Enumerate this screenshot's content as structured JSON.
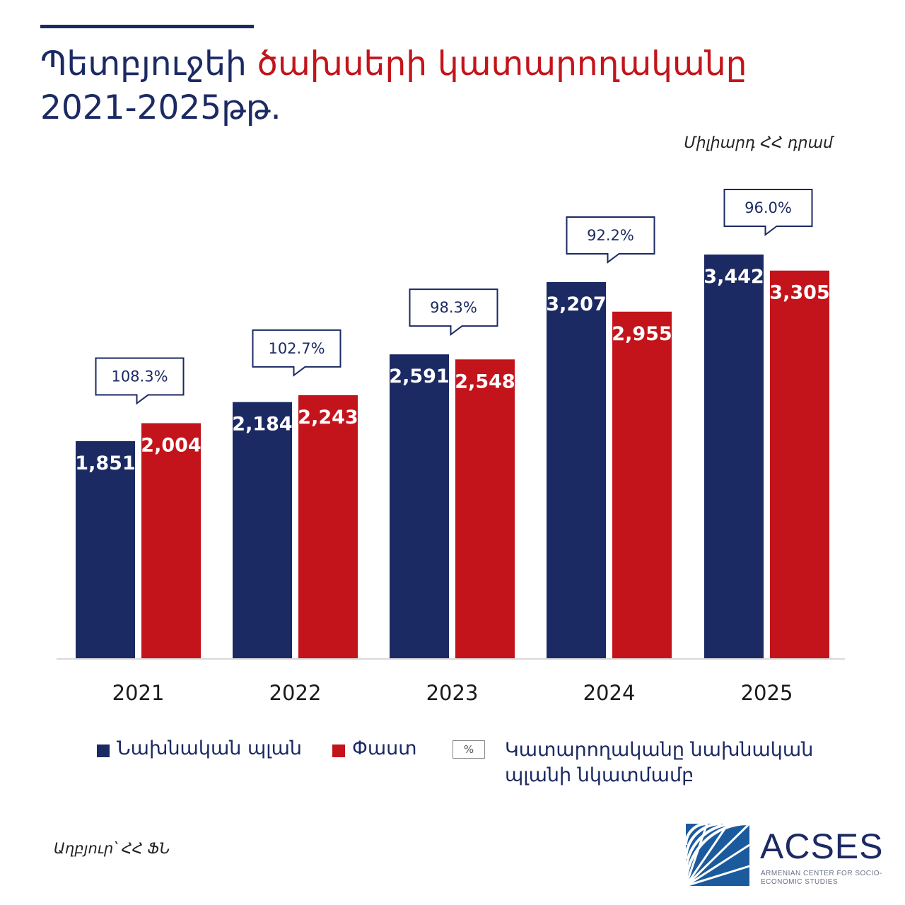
{
  "title": {
    "part1": "Պետբյուջեի ",
    "part2": "ծախսերի կատարողականը",
    "line2": "2021-2025թթ."
  },
  "unit": "Միլիարդ ՀՀ դրամ",
  "source": "Աղբյուր՝ ՀՀ ՖՆ",
  "logo": {
    "name": "ACSES",
    "subtitle": "ARMENIAN CENTER FOR SOCIO-ECONOMIC STUDIES"
  },
  "legend": {
    "plan": "Նախնական պլան",
    "fact": "Փաստ",
    "pct_symbol": "%",
    "pct_label_line1": "Կատարողականը նախնական",
    "pct_label_line2": "պլանի նկատմամբ"
  },
  "colors": {
    "plan": "#1c2a63",
    "fact": "#c3141b"
  },
  "chart_data": {
    "type": "bar",
    "categories": [
      "2021",
      "2022",
      "2023",
      "2024",
      "2025"
    ],
    "series": [
      {
        "name": "Նախնական պլան",
        "values": [
          1851,
          2184,
          2591,
          3207,
          3442
        ],
        "labels": [
          "1,851",
          "2,184",
          "2,591",
          "3,207",
          "3,442"
        ]
      },
      {
        "name": "Փաստ",
        "values": [
          2004,
          2243,
          2548,
          2955,
          3305
        ],
        "labels": [
          "2,004",
          "2,243",
          "2,548",
          "2,955",
          "3,305"
        ]
      }
    ],
    "performance": [
      "108.3%",
      "102.7%",
      "98.3%",
      "92.2%",
      "96.0%"
    ],
    "ylim": [
      0,
      3442
    ],
    "grid": false,
    "legend_position": "bottom"
  }
}
